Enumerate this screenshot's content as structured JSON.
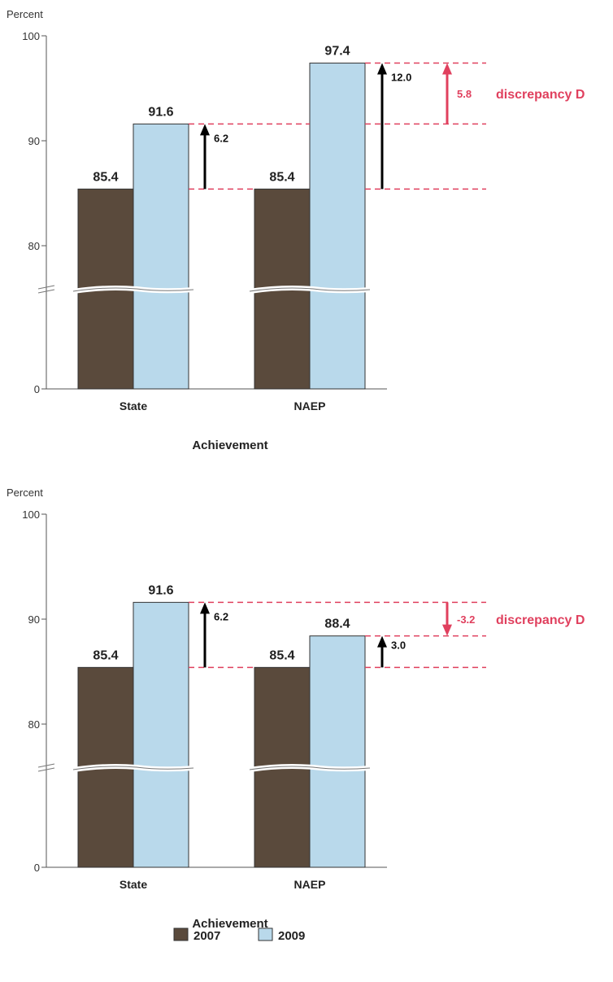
{
  "colors": {
    "series_2007": "#5a4a3c",
    "series_2009": "#b9d9eb",
    "bar_outline": "#333333",
    "axis": "#555555",
    "guide": "#e0405e",
    "arrow": "#000000",
    "discrepancy": "#e0405e"
  },
  "legend": {
    "placement": "bottom-center",
    "items": [
      {
        "name": "2007",
        "color_key": "series_2007"
      },
      {
        "name": "2009",
        "color_key": "series_2009"
      }
    ]
  },
  "chart_data": [
    {
      "type": "bar",
      "ylabel": "Percent",
      "xlabel": "Achievement",
      "categories": [
        "State",
        "NAEP"
      ],
      "series": [
        {
          "name": "2007",
          "values": [
            85.4,
            85.4
          ]
        },
        {
          "name": "2009",
          "values": [
            91.6,
            97.4
          ]
        }
      ],
      "value_labels": [
        [
          "85.4",
          "85.4"
        ],
        [
          "91.6",
          "97.4"
        ]
      ],
      "yticks": [
        {
          "value": 0,
          "label": "0"
        },
        {
          "value": 80,
          "label": "80"
        },
        {
          "value": 90,
          "label": "90"
        },
        {
          "value": 100,
          "label": "100"
        }
      ],
      "axis_break": true,
      "ylim": [
        0,
        100
      ],
      "differences": [
        {
          "category": "State",
          "from": 85.4,
          "to": 91.6,
          "label": "6.2"
        },
        {
          "category": "NAEP",
          "from": 85.4,
          "to": 97.4,
          "label": "12.0"
        }
      ],
      "discrepancy": {
        "from": 91.6,
        "to": 97.4,
        "value": "5.8",
        "text": "discrepancy D"
      }
    },
    {
      "type": "bar",
      "ylabel": "Percent",
      "xlabel": "Achievement",
      "categories": [
        "State",
        "NAEP"
      ],
      "series": [
        {
          "name": "2007",
          "values": [
            85.4,
            85.4
          ]
        },
        {
          "name": "2009",
          "values": [
            91.6,
            88.4
          ]
        }
      ],
      "value_labels": [
        [
          "85.4",
          "85.4"
        ],
        [
          "91.6",
          "88.4"
        ]
      ],
      "yticks": [
        {
          "value": 0,
          "label": "0"
        },
        {
          "value": 80,
          "label": "80"
        },
        {
          "value": 90,
          "label": "90"
        },
        {
          "value": 100,
          "label": "100"
        }
      ],
      "axis_break": true,
      "ylim": [
        0,
        100
      ],
      "differences": [
        {
          "category": "State",
          "from": 85.4,
          "to": 91.6,
          "label": "6.2"
        },
        {
          "category": "NAEP",
          "from": 85.4,
          "to": 88.4,
          "label": "3.0"
        }
      ],
      "discrepancy": {
        "from": 91.6,
        "to": 88.4,
        "value": "-3.2",
        "text": "discrepancy D"
      }
    }
  ]
}
